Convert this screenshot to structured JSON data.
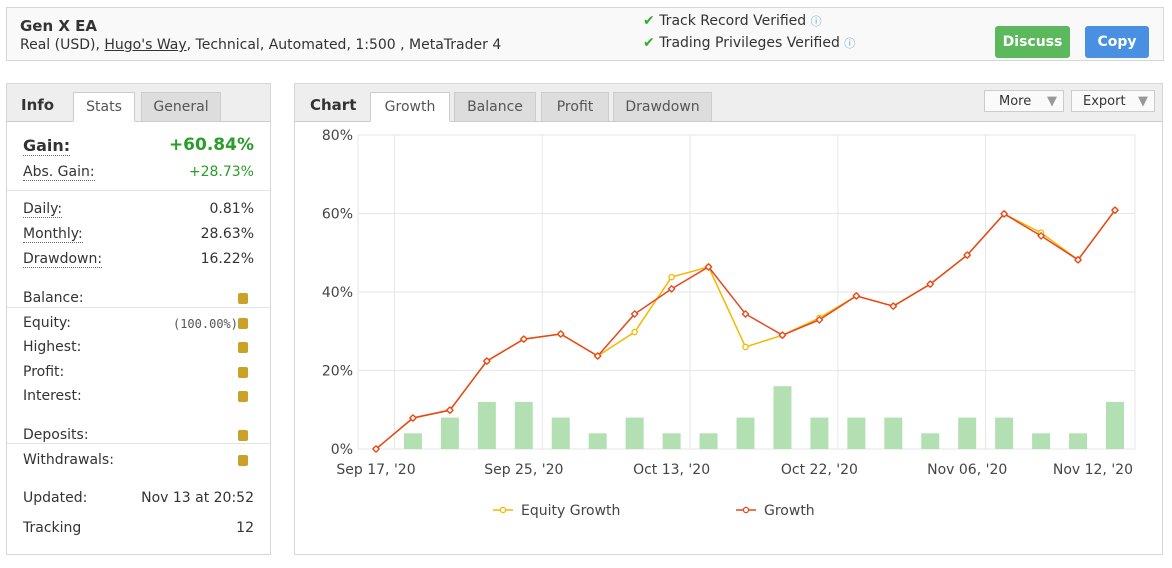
{
  "header": {
    "title": "Gen X EA",
    "account": "Real (USD), ",
    "broker": "Hugo's Way",
    "details": ", Technical, Automated, 1:500 , MetaTrader 4",
    "verifications": [
      "Track Record Verified",
      "Trading Privileges Verified"
    ],
    "buttons": [
      "Discuss",
      "Copy"
    ]
  },
  "info": {
    "tabs": [
      "Info",
      "Stats",
      "General"
    ],
    "gain": {
      "label": "Gain:",
      "value": "+60.84%"
    },
    "abs_gain": {
      "label": "Abs. Gain:",
      "value": "+28.73%"
    },
    "groups": [
      [
        {
          "label": "Daily:",
          "value": "0.81%"
        },
        {
          "label": "Monthly:",
          "value": "28.63%"
        },
        {
          "label": "Drawdown:",
          "value": "16.22%"
        }
      ],
      [
        {
          "label": "Balance:"
        },
        {
          "label": "Equity:",
          "value": "(100.00%)"
        },
        {
          "label": "Highest:"
        },
        {
          "label": "Profit:"
        },
        {
          "label": "Interest:"
        }
      ],
      [
        {
          "label": "Deposits:"
        },
        {
          "label": "Withdrawals:"
        }
      ],
      [
        {
          "label": "Updated:",
          "value": "Nov 13 at 20:52"
        },
        {
          "label": "Tracking",
          "value": "12"
        }
      ]
    ]
  },
  "chart_panel": {
    "tabs": [
      "Chart",
      "Growth",
      "Balance",
      "Profit",
      "Drawdown"
    ],
    "menus": [
      "More",
      "Export"
    ]
  },
  "chart_data": {
    "type": "line",
    "categories": [
      "Sep 17, '20",
      null,
      null,
      null,
      "Sep 25, '20",
      null,
      null,
      null,
      "Oct 13, '20",
      null,
      null,
      null,
      "Oct 22, '20",
      null,
      null,
      null,
      "Nov 06, '20",
      null,
      null,
      null,
      "Nov 12, '20"
    ],
    "series": [
      {
        "name": "Equity Growth",
        "color": "#f5b800",
        "values": [
          0,
          7.9,
          9.9,
          22.4,
          28.0,
          29.3,
          23.7,
          29.8,
          43.8,
          46.4,
          26.0,
          29.0,
          33.4,
          39.0,
          36.4,
          42.0,
          49.4,
          59.9,
          55.1,
          48.2,
          60.84
        ]
      },
      {
        "name": "Growth",
        "color": "#e8461e",
        "values": [
          0,
          7.9,
          9.9,
          22.4,
          28.0,
          29.3,
          23.7,
          34.4,
          40.8,
          46.4,
          34.4,
          29.0,
          32.9,
          39.0,
          36.4,
          42.0,
          49.4,
          59.9,
          54.3,
          48.2,
          60.84
        ]
      }
    ],
    "bars": {
      "color": "#b3e0b3",
      "axis": "y2",
      "values": [
        0,
        1,
        2,
        3,
        3,
        2,
        1,
        2,
        1,
        1,
        2,
        4,
        2,
        2,
        2,
        1,
        2,
        2,
        1,
        1,
        3
      ]
    },
    "ylim": [
      0,
      80
    ],
    "yticks": [
      {
        "value": 0,
        "label": "0%"
      },
      {
        "value": 20,
        "label": "20%"
      },
      {
        "value": 40,
        "label": "40%"
      },
      {
        "value": 60,
        "label": "60%"
      },
      {
        "value": 80,
        "label": "80%"
      }
    ],
    "y2lim": [
      0,
      20
    ],
    "grid": true
  }
}
